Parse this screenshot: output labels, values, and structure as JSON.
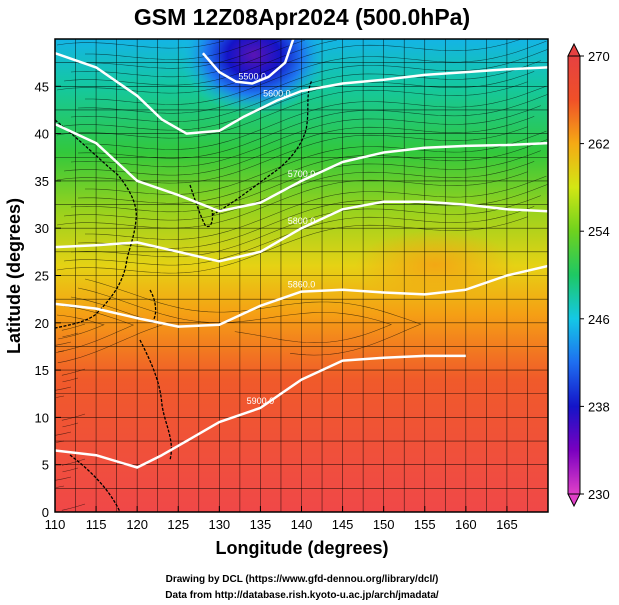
{
  "chart_data": {
    "type": "heatmap",
    "title": "GSM 12Z08Apr2024 (500.0hPa)",
    "xlabel": "Longitude (degrees)",
    "ylabel": "Latitude  (degrees)",
    "xlim": [
      110,
      170
    ],
    "ylim": [
      0,
      50
    ],
    "xticks": [
      110,
      115,
      120,
      125,
      130,
      135,
      140,
      145,
      150,
      155,
      160,
      165
    ],
    "yticks": [
      0,
      5,
      10,
      15,
      20,
      25,
      30,
      35,
      40,
      45
    ],
    "colorbar": {
      "min": 230,
      "max": 270,
      "ticks": [
        230,
        238,
        246,
        254,
        262,
        270
      ],
      "colors": [
        "#e040c8",
        "#7a00c0",
        "#1414c8",
        "#1e6ef0",
        "#14c8e6",
        "#1ec864",
        "#6ed21e",
        "#d2e614",
        "#f5aa14",
        "#f05028",
        "#e64141"
      ]
    },
    "contours": [
      {
        "label": "5500.0",
        "lon": [
          128,
          130,
          132,
          134,
          136,
          138,
          139
        ],
        "lat": [
          48.5,
          46.5,
          45.5,
          45.3,
          46,
          47.5,
          50
        ]
      },
      {
        "label": "5600.0",
        "lon": [
          110,
          115,
          120,
          123,
          126,
          130,
          133,
          137,
          140,
          145,
          150,
          155,
          160,
          165,
          170
        ],
        "lat": [
          48.5,
          47,
          44,
          41.5,
          40,
          40.3,
          41.8,
          43.5,
          44.5,
          45.3,
          45.7,
          46.2,
          46.5,
          46.8,
          47
        ]
      },
      {
        "label": "5700.0",
        "lon": [
          110,
          115,
          120,
          125,
          130,
          135,
          140,
          145,
          150,
          155,
          160,
          165,
          170
        ],
        "lat": [
          41,
          39,
          35,
          33.5,
          31.8,
          32.7,
          35,
          37,
          38,
          38.5,
          38.7,
          38.8,
          39
        ]
      },
      {
        "label": "5800.0",
        "lon": [
          110,
          115,
          120,
          125,
          130,
          135,
          140,
          145,
          150,
          155,
          160,
          165,
          170
        ],
        "lat": [
          28,
          28.2,
          28.5,
          27.5,
          26.5,
          27.5,
          30,
          32,
          32.8,
          32.8,
          32.5,
          32,
          31.8
        ]
      },
      {
        "label": "5860.0",
        "lon": [
          110,
          115,
          120,
          125,
          130,
          135,
          140,
          145,
          150,
          155,
          160,
          165,
          170
        ],
        "lat": [
          22,
          21.5,
          20.5,
          19.6,
          19.8,
          21.8,
          23.3,
          23.5,
          23.2,
          23,
          23.5,
          25,
          26
        ]
      },
      {
        "label": "5900.0",
        "lon": [
          110,
          115,
          120,
          123,
          126,
          130,
          135,
          140,
          145,
          150,
          155,
          160
        ],
        "lat": [
          6.5,
          6,
          4.7,
          6,
          7.5,
          9.5,
          11,
          14,
          16,
          16.3,
          16.5,
          16.5
        ]
      }
    ]
  },
  "footer": {
    "line1": "Drawing by DCL (https://www.gfd-dennou.org/library/dcl/)",
    "line2": "Data from http://database.rish.kyoto-u.ac.jp/arch/jmadata/"
  }
}
